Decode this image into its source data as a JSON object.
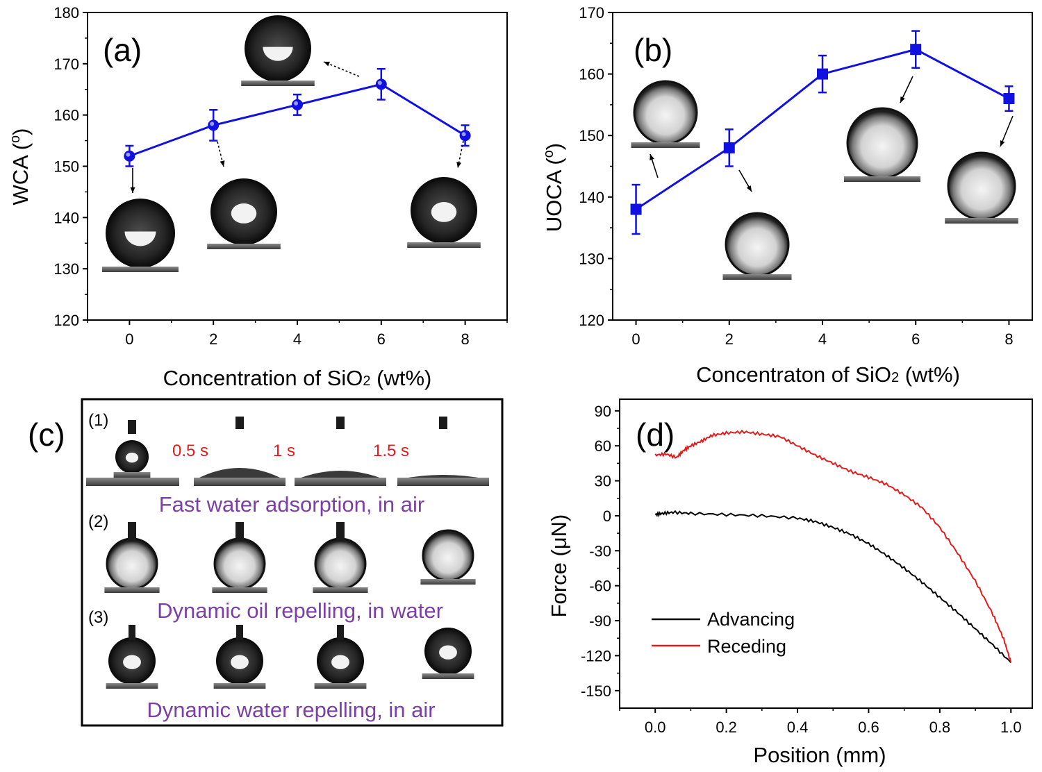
{
  "chart_data": [
    {
      "type": "line",
      "panel": "(a)",
      "xlabel": "Concentration of SiO",
      "xlabel_sub": "2",
      "xlabel_tail": " (wt%)",
      "ylabel": "WCA (",
      "ylabel_sup": "o",
      "ylabel_tail": ")",
      "xlim": [
        -1,
        9
      ],
      "ylim": [
        120,
        180
      ],
      "xticks": [
        0,
        2,
        4,
        6,
        8
      ],
      "yticks": [
        120,
        130,
        140,
        150,
        160,
        170,
        180
      ],
      "x": [
        0,
        2,
        4,
        6,
        8
      ],
      "y": [
        152,
        158,
        162,
        166,
        156
      ],
      "err": [
        2,
        3,
        2,
        3,
        2
      ],
      "marker": "circle",
      "color": "#1010e0"
    },
    {
      "type": "line",
      "panel": "(b)",
      "xlabel": "Concentraton of SiO",
      "xlabel_sub": "2",
      "xlabel_tail": " (wt%)",
      "ylabel": "UOCA (",
      "ylabel_sup": "o",
      "ylabel_tail": ")",
      "xlim": [
        -0.5,
        8.5
      ],
      "ylim": [
        120,
        170
      ],
      "xticks": [
        0,
        2,
        4,
        6,
        8
      ],
      "yticks": [
        120,
        130,
        140,
        150,
        160,
        170
      ],
      "x": [
        0,
        2,
        4,
        6,
        8
      ],
      "y": [
        138,
        148,
        160,
        164,
        156
      ],
      "err": [
        4,
        3,
        3,
        3,
        2
      ],
      "marker": "square",
      "color": "#1010e0"
    },
    {
      "type": "line",
      "panel": "(d)",
      "xlabel": "Position (mm)",
      "ylabel": "Force (μN)",
      "xlim": [
        -0.1,
        1.06
      ],
      "ylim": [
        -165,
        100
      ],
      "xticks": [
        "0.0",
        "0.2",
        "0.4",
        "0.6",
        "0.8",
        "1.0"
      ],
      "xtick_values": [
        0,
        0.2,
        0.4,
        0.6,
        0.8,
        1.0
      ],
      "yticks": [
        90,
        60,
        30,
        0,
        -30,
        -60,
        -90,
        -120,
        -150
      ],
      "legend_position": "bottom-left",
      "series": [
        {
          "name": "Advancing",
          "color": "#000000",
          "x": [
            0,
            0.02,
            0.05,
            0.1,
            0.2,
            0.3,
            0.4,
            0.45,
            0.5,
            0.55,
            0.6,
            0.65,
            0.7,
            0.75,
            0.8,
            0.85,
            0.9,
            0.95,
            1.0
          ],
          "y": [
            1,
            2,
            3,
            2,
            1,
            0,
            -2,
            -5,
            -10,
            -16,
            -24,
            -34,
            -45,
            -57,
            -70,
            -83,
            -97,
            -111,
            -126
          ]
        },
        {
          "name": "Receding",
          "color": "#e21b1b",
          "x": [
            0,
            0.03,
            0.06,
            0.08,
            0.1,
            0.13,
            0.16,
            0.2,
            0.25,
            0.3,
            0.35,
            0.4,
            0.45,
            0.5,
            0.55,
            0.6,
            0.65,
            0.7,
            0.75,
            0.8,
            0.85,
            0.9,
            0.95,
            0.98,
            1.0
          ],
          "y": [
            52,
            53,
            50,
            56,
            60,
            64,
            69,
            71,
            72,
            70,
            68,
            60,
            52,
            45,
            38,
            33,
            27,
            18,
            7,
            -10,
            -32,
            -56,
            -85,
            -106,
            -126
          ]
        }
      ]
    }
  ],
  "panel_c": {
    "label": "(c)",
    "rows": [
      {
        "label": "(1)",
        "caption": "Fast water adsorption, in air",
        "times": [
          "0.5 s",
          "1 s",
          "1.5 s"
        ]
      },
      {
        "label": "(2)",
        "caption": "Dynamic oil repelling, in water"
      },
      {
        "label": "(3)",
        "caption": "Dynamic water repelling, in air"
      }
    ]
  },
  "colors": {
    "accent": "#1010e0",
    "receding": "#e21b1b",
    "caption": "#7b3fa6"
  }
}
